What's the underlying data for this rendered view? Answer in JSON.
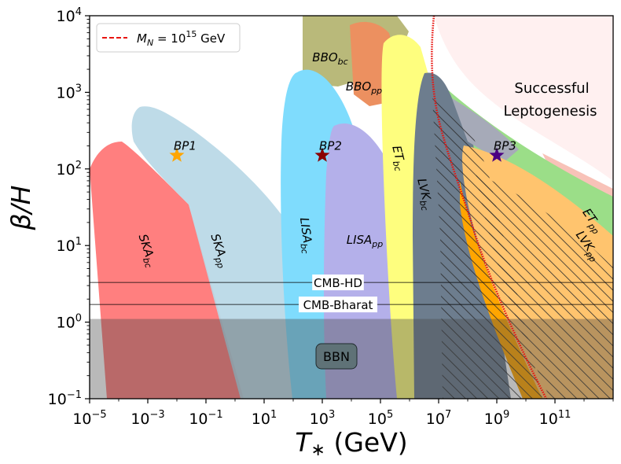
{
  "chart_data": {
    "type": "region-plot",
    "xlabel": "T_* (GeV)",
    "ylabel": "β/H",
    "x_scale": "log",
    "y_scale": "log",
    "xlim": [
      1e-05,
      10000000000000.0
    ],
    "ylim": [
      0.1,
      10000
    ],
    "x_ticks": [
      {
        "base": "10",
        "exp": "−5"
      },
      {
        "base": "10",
        "exp": "−3"
      },
      {
        "base": "10",
        "exp": "−1"
      },
      {
        "base": "10",
        "exp": "1"
      },
      {
        "base": "10",
        "exp": "3"
      },
      {
        "base": "10",
        "exp": "5"
      },
      {
        "base": "10",
        "exp": "7"
      },
      {
        "base": "10",
        "exp": "9"
      },
      {
        "base": "10",
        "exp": "11"
      }
    ],
    "y_ticks": [
      {
        "base": "10",
        "exp": "−1"
      },
      {
        "base": "10",
        "exp": "0"
      },
      {
        "base": "10",
        "exp": "1"
      },
      {
        "base": "10",
        "exp": "2"
      },
      {
        "base": "10",
        "exp": "3"
      },
      {
        "base": "10",
        "exp": "4"
      }
    ],
    "legend": {
      "label_prefix": "M",
      "label_sub": "N",
      "label_eq": " = 10",
      "label_exp": "15",
      "label_unit": " GeV",
      "placement": "top-left",
      "color": "#e8140f",
      "style": "dashed"
    },
    "regions": [
      {
        "name": "SKA_bc",
        "base": "SKA",
        "sub": "bc",
        "color": "#ff7f7f"
      },
      {
        "name": "SKA_pp",
        "base": "SKA",
        "sub": "pp",
        "color": "#b9d8e6"
      },
      {
        "name": "BBO_bc",
        "base": "BBO",
        "sub": "bc",
        "color": "#b9b97a"
      },
      {
        "name": "BBO_pp",
        "base": "BBO",
        "sub": "pp",
        "color": "#ec9060"
      },
      {
        "name": "LISA_bc",
        "base": "LISA",
        "sub": "bc",
        "color": "#7fdcfd"
      },
      {
        "name": "LISA_pp",
        "base": "LISA",
        "sub": "pp",
        "color": "#b4b0ea"
      },
      {
        "name": "ET_bc",
        "base": "ET",
        "sub": "bc",
        "color": "#fefe7e"
      },
      {
        "name": "LVK_bc",
        "base": "LVK",
        "sub": "bc",
        "color": "#6d7d8e"
      },
      {
        "name": "ET_pp",
        "base": "ET",
        "sub": "pp",
        "color": "#9bde88"
      },
      {
        "name": "LVK_pp",
        "base": "LVK",
        "sub": "pp",
        "color": "#ffc46e"
      }
    ],
    "benchmarks": [
      {
        "base": "BP",
        "sub": "1",
        "T": 0.01,
        "beta_over_H": 150,
        "color": "#ffa500"
      },
      {
        "base": "BP",
        "sub": "2",
        "T": 1000,
        "beta_over_H": 150,
        "color": "#8b0000"
      },
      {
        "base": "BP",
        "sub": "3",
        "T": 1000000000.0,
        "beta_over_H": 150,
        "color": "#4b0082"
      }
    ],
    "horizontal_lines": [
      {
        "label": "CMB-HD",
        "value": 3.3
      },
      {
        "label": "CMB-Bharat",
        "value": 1.7
      }
    ],
    "bbn": {
      "label": "BBN",
      "upper": 1.1
    },
    "leptogenesis": {
      "line1": "Successful",
      "line2": "Leptogenesis",
      "color": "#fff0f0"
    }
  }
}
